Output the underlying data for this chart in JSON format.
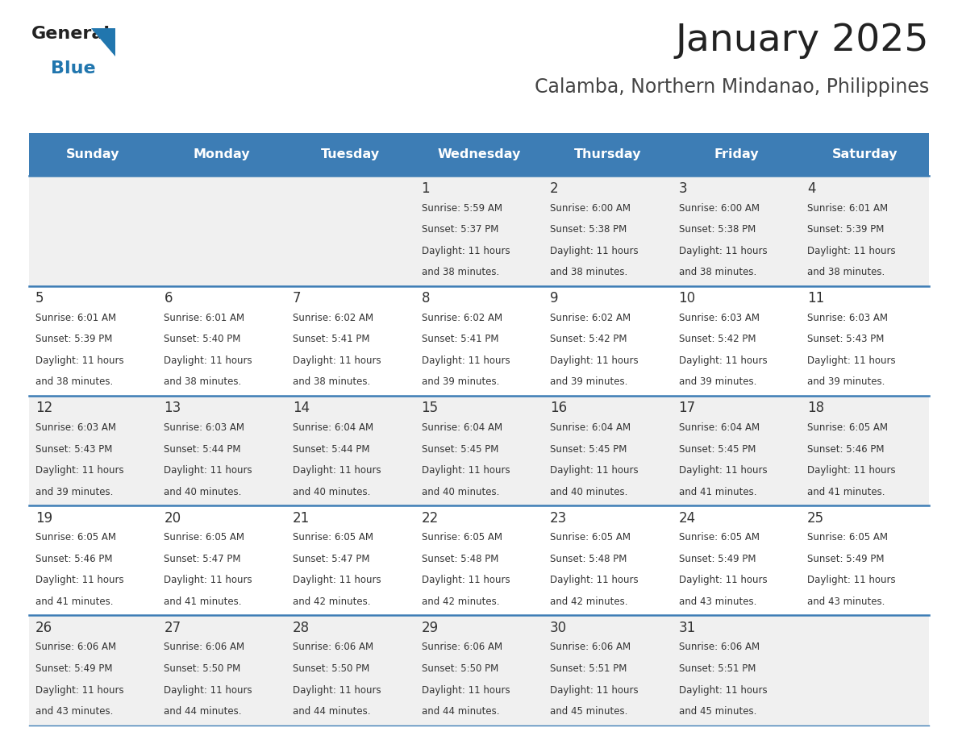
{
  "title": "January 2025",
  "subtitle": "Calamba, Northern Mindanao, Philippines",
  "header_bg": "#3d7db5",
  "header_text_color": "#ffffff",
  "days_of_week": [
    "Sunday",
    "Monday",
    "Tuesday",
    "Wednesday",
    "Thursday",
    "Friday",
    "Saturday"
  ],
  "bg_color": "#ffffff",
  "cell_bg_even": "#f0f0f0",
  "cell_bg_odd": "#ffffff",
  "row_line_color": "#3d7db5",
  "text_color": "#333333",
  "calendar": [
    [
      {
        "day": "",
        "sunrise": "",
        "sunset": "",
        "daylight": ""
      },
      {
        "day": "",
        "sunrise": "",
        "sunset": "",
        "daylight": ""
      },
      {
        "day": "",
        "sunrise": "",
        "sunset": "",
        "daylight": ""
      },
      {
        "day": "1",
        "sunrise": "5:59 AM",
        "sunset": "5:37 PM",
        "daylight": "11 hours and 38 minutes."
      },
      {
        "day": "2",
        "sunrise": "6:00 AM",
        "sunset": "5:38 PM",
        "daylight": "11 hours and 38 minutes."
      },
      {
        "day": "3",
        "sunrise": "6:00 AM",
        "sunset": "5:38 PM",
        "daylight": "11 hours and 38 minutes."
      },
      {
        "day": "4",
        "sunrise": "6:01 AM",
        "sunset": "5:39 PM",
        "daylight": "11 hours and 38 minutes."
      }
    ],
    [
      {
        "day": "5",
        "sunrise": "6:01 AM",
        "sunset": "5:39 PM",
        "daylight": "11 hours and 38 minutes."
      },
      {
        "day": "6",
        "sunrise": "6:01 AM",
        "sunset": "5:40 PM",
        "daylight": "11 hours and 38 minutes."
      },
      {
        "day": "7",
        "sunrise": "6:02 AM",
        "sunset": "5:41 PM",
        "daylight": "11 hours and 38 minutes."
      },
      {
        "day": "8",
        "sunrise": "6:02 AM",
        "sunset": "5:41 PM",
        "daylight": "11 hours and 39 minutes."
      },
      {
        "day": "9",
        "sunrise": "6:02 AM",
        "sunset": "5:42 PM",
        "daylight": "11 hours and 39 minutes."
      },
      {
        "day": "10",
        "sunrise": "6:03 AM",
        "sunset": "5:42 PM",
        "daylight": "11 hours and 39 minutes."
      },
      {
        "day": "11",
        "sunrise": "6:03 AM",
        "sunset": "5:43 PM",
        "daylight": "11 hours and 39 minutes."
      }
    ],
    [
      {
        "day": "12",
        "sunrise": "6:03 AM",
        "sunset": "5:43 PM",
        "daylight": "11 hours and 39 minutes."
      },
      {
        "day": "13",
        "sunrise": "6:03 AM",
        "sunset": "5:44 PM",
        "daylight": "11 hours and 40 minutes."
      },
      {
        "day": "14",
        "sunrise": "6:04 AM",
        "sunset": "5:44 PM",
        "daylight": "11 hours and 40 minutes."
      },
      {
        "day": "15",
        "sunrise": "6:04 AM",
        "sunset": "5:45 PM",
        "daylight": "11 hours and 40 minutes."
      },
      {
        "day": "16",
        "sunrise": "6:04 AM",
        "sunset": "5:45 PM",
        "daylight": "11 hours and 40 minutes."
      },
      {
        "day": "17",
        "sunrise": "6:04 AM",
        "sunset": "5:45 PM",
        "daylight": "11 hours and 41 minutes."
      },
      {
        "day": "18",
        "sunrise": "6:05 AM",
        "sunset": "5:46 PM",
        "daylight": "11 hours and 41 minutes."
      }
    ],
    [
      {
        "day": "19",
        "sunrise": "6:05 AM",
        "sunset": "5:46 PM",
        "daylight": "11 hours and 41 minutes."
      },
      {
        "day": "20",
        "sunrise": "6:05 AM",
        "sunset": "5:47 PM",
        "daylight": "11 hours and 41 minutes."
      },
      {
        "day": "21",
        "sunrise": "6:05 AM",
        "sunset": "5:47 PM",
        "daylight": "11 hours and 42 minutes."
      },
      {
        "day": "22",
        "sunrise": "6:05 AM",
        "sunset": "5:48 PM",
        "daylight": "11 hours and 42 minutes."
      },
      {
        "day": "23",
        "sunrise": "6:05 AM",
        "sunset": "5:48 PM",
        "daylight": "11 hours and 42 minutes."
      },
      {
        "day": "24",
        "sunrise": "6:05 AM",
        "sunset": "5:49 PM",
        "daylight": "11 hours and 43 minutes."
      },
      {
        "day": "25",
        "sunrise": "6:05 AM",
        "sunset": "5:49 PM",
        "daylight": "11 hours and 43 minutes."
      }
    ],
    [
      {
        "day": "26",
        "sunrise": "6:06 AM",
        "sunset": "5:49 PM",
        "daylight": "11 hours and 43 minutes."
      },
      {
        "day": "27",
        "sunrise": "6:06 AM",
        "sunset": "5:50 PM",
        "daylight": "11 hours and 44 minutes."
      },
      {
        "day": "28",
        "sunrise": "6:06 AM",
        "sunset": "5:50 PM",
        "daylight": "11 hours and 44 minutes."
      },
      {
        "day": "29",
        "sunrise": "6:06 AM",
        "sunset": "5:50 PM",
        "daylight": "11 hours and 44 minutes."
      },
      {
        "day": "30",
        "sunrise": "6:06 AM",
        "sunset": "5:51 PM",
        "daylight": "11 hours and 45 minutes."
      },
      {
        "day": "31",
        "sunrise": "6:06 AM",
        "sunset": "5:51 PM",
        "daylight": "11 hours and 45 minutes."
      },
      {
        "day": "",
        "sunrise": "",
        "sunset": "",
        "daylight": ""
      }
    ]
  ],
  "logo_triangle_color": "#2176ae"
}
